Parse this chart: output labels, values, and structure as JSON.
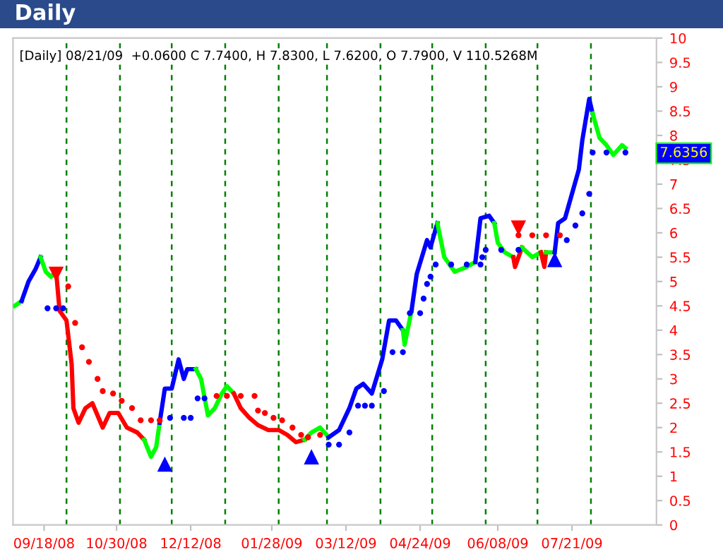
{
  "chart_data": {
    "type": "line",
    "title": "Daily",
    "subtitle": "[Daily] 08/21/09  +0.0600 C 7.7400, H 7.8300, L 7.6200, O 7.7900, V 110.5268M",
    "xlim": [
      "2008-08-31",
      "2009-09-08"
    ],
    "xticks": [
      {
        "value": "2008-09-18",
        "label": "09/18/08"
      },
      {
        "value": "2008-10-30",
        "label": "10/30/08"
      },
      {
        "value": "2008-12-12",
        "label": "12/12/08"
      },
      {
        "value": "2009-01-28",
        "label": "01/28/09"
      },
      {
        "value": "2009-03-12",
        "label": "03/12/09"
      },
      {
        "value": "2009-04-24",
        "label": "04/24/09"
      },
      {
        "value": "2009-06-08",
        "label": "06/08/09"
      },
      {
        "value": "2009-07-21",
        "label": "07/21/09"
      }
    ],
    "ylim": [
      0,
      10
    ],
    "yticks": [
      0,
      0.5,
      1,
      1.5,
      2,
      2.5,
      3,
      3.5,
      4,
      4.5,
      5,
      5.5,
      6,
      6.5,
      7,
      7.5,
      8,
      8.5,
      9,
      9.5,
      10
    ],
    "grid": false,
    "legend": false,
    "series": [
      {
        "color": "#00ff00",
        "marker": "none",
        "line_style": "solid",
        "x": [
          "2008-09-01",
          "2008-09-05"
        ],
        "values": [
          4.5,
          4.6
        ]
      },
      {
        "color": "#0000ff",
        "marker": "none",
        "line_style": "solid",
        "x": [
          "2008-09-05",
          "2008-09-09",
          "2008-09-13",
          "2008-09-16"
        ],
        "values": [
          4.6,
          5.0,
          5.25,
          5.5
        ]
      },
      {
        "color": "#00ff00",
        "marker": "none",
        "line_style": "solid",
        "x": [
          "2008-09-16",
          "2008-09-19",
          "2008-09-22",
          "2008-09-25"
        ],
        "values": [
          5.5,
          5.2,
          5.1,
          5.2
        ]
      },
      {
        "color": "#ff0000",
        "marker": "none",
        "line_style": "solid",
        "x": [
          "2008-09-25",
          "2008-09-27",
          "2008-10-01",
          "2008-10-04",
          "2008-10-05",
          "2008-10-08",
          "2008-10-12",
          "2008-10-16",
          "2008-10-22",
          "2008-10-26",
          "2008-10-31",
          "2008-11-05",
          "2008-11-11",
          "2008-11-15"
        ],
        "values": [
          5.2,
          4.4,
          4.2,
          3.3,
          2.4,
          2.1,
          2.4,
          2.5,
          2.0,
          2.3,
          2.3,
          2.0,
          1.9,
          1.75
        ]
      },
      {
        "color": "#00ff00",
        "marker": "none",
        "line_style": "solid",
        "x": [
          "2008-11-15",
          "2008-11-19",
          "2008-11-22",
          "2008-11-24"
        ],
        "values": [
          1.75,
          1.4,
          1.6,
          2.1
        ]
      },
      {
        "color": "#0000ff",
        "marker": "none",
        "line_style": "solid",
        "x": [
          "2008-11-24",
          "2008-11-27",
          "2008-12-01",
          "2008-12-05",
          "2008-12-08",
          "2008-12-10",
          "2008-12-15"
        ],
        "values": [
          2.1,
          2.8,
          2.8,
          3.4,
          3.0,
          3.2,
          3.2
        ]
      },
      {
        "color": "#00ff00",
        "marker": "none",
        "line_style": "solid",
        "x": [
          "2008-12-15",
          "2008-12-18",
          "2008-12-22",
          "2008-12-26",
          "2008-12-30",
          "2009-01-02",
          "2009-01-06"
        ],
        "values": [
          3.2,
          3.0,
          2.25,
          2.4,
          2.7,
          2.85,
          2.7
        ]
      },
      {
        "color": "#ff0000",
        "marker": "none",
        "line_style": "solid",
        "x": [
          "2009-01-06",
          "2009-01-10",
          "2009-01-15",
          "2009-01-20",
          "2009-01-26",
          "2009-02-01",
          "2009-02-06",
          "2009-02-11",
          "2009-02-16"
        ],
        "values": [
          2.7,
          2.4,
          2.2,
          2.05,
          1.95,
          1.95,
          1.85,
          1.7,
          1.75
        ]
      },
      {
        "color": "#00ff00",
        "marker": "none",
        "line_style": "solid",
        "x": [
          "2009-02-16",
          "2009-02-20",
          "2009-02-25",
          "2009-03-02"
        ],
        "values": [
          1.75,
          1.9,
          2.0,
          1.8
        ]
      },
      {
        "color": "#0000ff",
        "marker": "none",
        "line_style": "solid",
        "x": [
          "2009-03-02",
          "2009-03-08",
          "2009-03-14",
          "2009-03-18",
          "2009-03-22",
          "2009-03-27",
          "2009-04-02",
          "2009-04-06",
          "2009-04-10",
          "2009-04-14"
        ],
        "values": [
          1.8,
          1.95,
          2.4,
          2.8,
          2.9,
          2.7,
          3.4,
          4.2,
          4.2,
          4.0
        ]
      },
      {
        "color": "#00ff00",
        "marker": "none",
        "line_style": "solid",
        "x": [
          "2009-04-14",
          "2009-04-15",
          "2009-04-19"
        ],
        "values": [
          4.0,
          3.7,
          4.4
        ]
      },
      {
        "color": "#0000ff",
        "marker": "none",
        "line_style": "solid",
        "x": [
          "2009-04-19",
          "2009-04-22",
          "2009-04-28",
          "2009-04-30",
          "2009-05-04"
        ],
        "values": [
          4.4,
          5.15,
          5.85,
          5.7,
          6.2
        ]
      },
      {
        "color": "#00ff00",
        "marker": "none",
        "line_style": "solid",
        "x": [
          "2009-05-04",
          "2009-05-08",
          "2009-05-14",
          "2009-05-21",
          "2009-05-26"
        ],
        "values": [
          6.2,
          5.5,
          5.2,
          5.3,
          5.4
        ]
      },
      {
        "color": "#0000ff",
        "marker": "none",
        "line_style": "solid",
        "x": [
          "2009-05-26",
          "2009-05-29",
          "2009-06-03",
          "2009-06-06"
        ],
        "values": [
          5.4,
          6.3,
          6.35,
          6.2
        ]
      },
      {
        "color": "#00ff00",
        "marker": "none",
        "line_style": "solid",
        "x": [
          "2009-06-06",
          "2009-06-08",
          "2009-06-12",
          "2009-06-17"
        ],
        "values": [
          6.2,
          5.8,
          5.6,
          5.5
        ]
      },
      {
        "color": "#ff0000",
        "marker": "none",
        "line_style": "solid",
        "x": [
          "2009-06-17",
          "2009-06-18",
          "2009-06-22"
        ],
        "values": [
          5.5,
          5.3,
          5.7
        ]
      },
      {
        "color": "#00ff00",
        "marker": "none",
        "line_style": "solid",
        "x": [
          "2009-06-22",
          "2009-06-28",
          "2009-07-03"
        ],
        "values": [
          5.7,
          5.5,
          5.6
        ]
      },
      {
        "color": "#ff0000",
        "marker": "none",
        "line_style": "solid",
        "x": [
          "2009-07-03",
          "2009-07-05",
          "2009-07-06"
        ],
        "values": [
          5.6,
          5.3,
          5.6
        ]
      },
      {
        "color": "#00ff00",
        "marker": "none",
        "line_style": "solid",
        "x": [
          "2009-07-06",
          "2009-07-11"
        ],
        "values": [
          5.6,
          5.6
        ]
      },
      {
        "color": "#0000ff",
        "marker": "none",
        "line_style": "solid",
        "x": [
          "2009-07-11",
          "2009-07-13",
          "2009-07-17",
          "2009-07-21",
          "2009-07-25",
          "2009-07-27",
          "2009-07-31",
          "2009-08-02"
        ],
        "values": [
          5.6,
          6.2,
          6.3,
          6.8,
          7.3,
          7.9,
          8.75,
          8.45
        ]
      },
      {
        "color": "#00ff00",
        "marker": "none",
        "line_style": "solid",
        "x": [
          "2009-08-02",
          "2009-08-06",
          "2009-08-10",
          "2009-08-14",
          "2009-08-19",
          "2009-08-21"
        ],
        "values": [
          8.45,
          7.95,
          7.8,
          7.6,
          7.8,
          7.74
        ]
      },
      {
        "type": "scatter",
        "color": "#ff0000",
        "marker": "circle",
        "x": [
          "2008-10-02",
          "2008-10-06",
          "2008-10-10",
          "2008-10-14",
          "2008-10-19",
          "2008-10-22",
          "2008-10-28",
          "2008-11-02",
          "2008-11-08",
          "2008-11-13",
          "2008-11-19",
          "2008-11-24",
          "2008-12-27",
          "2009-01-02",
          "2009-01-10",
          "2009-01-18",
          "2009-01-20",
          "2009-01-24",
          "2009-01-29",
          "2009-02-03",
          "2009-02-09",
          "2009-02-14",
          "2009-02-18",
          "2009-02-25",
          "2009-06-20",
          "2009-06-28",
          "2009-07-06",
          "2009-07-14"
        ],
        "values": [
          4.9,
          4.15,
          3.65,
          3.35,
          3.0,
          2.75,
          2.7,
          2.55,
          2.4,
          2.15,
          2.15,
          2.15,
          2.65,
          2.65,
          2.65,
          2.65,
          2.35,
          2.3,
          2.2,
          2.15,
          2.0,
          1.85,
          1.8,
          1.85,
          5.95,
          5.95,
          5.95,
          5.95
        ]
      },
      {
        "type": "scatter",
        "color": "#0000ff",
        "marker": "circle",
        "x": [
          "2008-09-20",
          "2008-09-25",
          "2008-09-29",
          "2008-11-30",
          "2008-12-08",
          "2008-12-12",
          "2008-12-16",
          "2008-12-20",
          "2009-03-02",
          "2009-03-08",
          "2009-03-14",
          "2009-03-19",
          "2009-03-23",
          "2009-03-27",
          "2009-04-03",
          "2009-04-08",
          "2009-04-14",
          "2009-04-18",
          "2009-04-24",
          "2009-04-26",
          "2009-04-28",
          "2009-04-30",
          "2009-05-03",
          "2009-05-12",
          "2009-05-21",
          "2009-05-29",
          "2009-05-30",
          "2009-06-01",
          "2009-06-10",
          "2009-06-20",
          "2009-07-18",
          "2009-07-23",
          "2009-07-27",
          "2009-07-31",
          "2009-08-02",
          "2009-08-10",
          "2009-08-21"
        ],
        "values": [
          4.45,
          4.45,
          4.45,
          2.2,
          2.2,
          2.2,
          2.6,
          2.6,
          1.65,
          1.65,
          1.9,
          2.45,
          2.45,
          2.45,
          2.75,
          3.55,
          3.55,
          4.35,
          4.35,
          4.65,
          4.95,
          5.1,
          5.35,
          5.35,
          5.35,
          5.35,
          5.5,
          5.65,
          5.65,
          5.65,
          5.85,
          6.15,
          6.4,
          6.8,
          7.65,
          7.65,
          7.65
        ]
      },
      {
        "type": "scatter",
        "color": "#ff0000",
        "marker": "triangle_down",
        "x": [
          "2008-09-25",
          "2009-06-20"
        ],
        "values": [
          5.15,
          6.1
        ]
      },
      {
        "type": "scatter",
        "color": "#0000ff",
        "marker": "triangle",
        "x": [
          "2008-11-27",
          "2009-02-20",
          "2009-07-11"
        ],
        "values": [
          1.25,
          1.4,
          5.45
        ]
      }
    ],
    "ref_lines": [
      {
        "axis": "x",
        "value": "2008-10-01",
        "color": "#008000",
        "line_style": "dashed"
      },
      {
        "axis": "x",
        "value": "2008-11-01",
        "color": "#008000",
        "line_style": "dashed"
      },
      {
        "axis": "x",
        "value": "2008-12-01",
        "color": "#008000",
        "line_style": "dashed"
      },
      {
        "axis": "x",
        "value": "2009-01-01",
        "color": "#008000",
        "line_style": "dashed"
      },
      {
        "axis": "x",
        "value": "2009-02-01",
        "color": "#008000",
        "line_style": "dashed"
      },
      {
        "axis": "x",
        "value": "2009-03-01",
        "color": "#008000",
        "line_style": "dashed"
      },
      {
        "axis": "x",
        "value": "2009-04-01",
        "color": "#008000",
        "line_style": "dashed"
      },
      {
        "axis": "x",
        "value": "2009-05-01",
        "color": "#008000",
        "line_style": "dashed"
      },
      {
        "axis": "x",
        "value": "2009-06-01",
        "color": "#008000",
        "line_style": "dashed"
      },
      {
        "axis": "x",
        "value": "2009-07-01",
        "color": "#008000",
        "line_style": "dashed"
      },
      {
        "axis": "x",
        "value": "2009-08-01",
        "color": "#008000",
        "line_style": "dashed"
      }
    ],
    "annotations": [
      {
        "text": "7.6356",
        "x": "2009-08-21",
        "y": 7.6356
      }
    ]
  }
}
